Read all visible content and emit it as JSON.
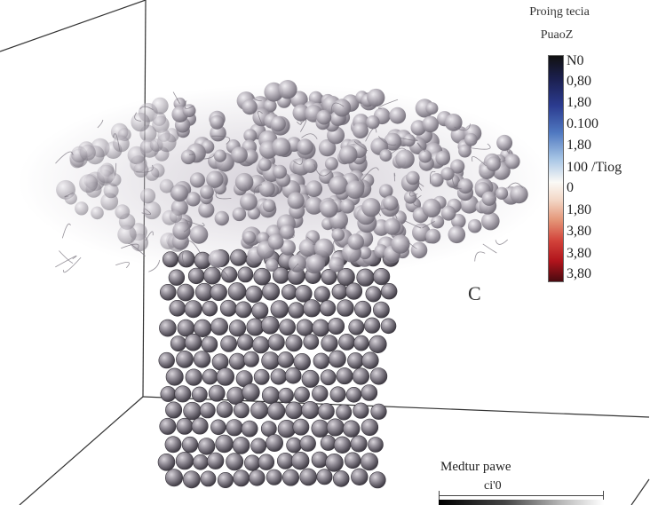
{
  "colorbar": {
    "title_line1": "Proiηg tecia",
    "title_line2": "PuaoZ",
    "ticks": [
      "N0",
      "0,80",
      "1,80",
      "0.100",
      "1,80",
      "100 /Tiog",
      "0",
      "1,80",
      "3,80",
      "3,80",
      "3,80"
    ]
  },
  "panel_letter": "C",
  "scale": {
    "title": "Medtur pawe",
    "value": "ci'0"
  },
  "colors": {
    "sphere": "#8f8a93",
    "sphere_light": "#d9d5db",
    "sphere_dark": "#4e4a52",
    "frame": "#333333"
  }
}
